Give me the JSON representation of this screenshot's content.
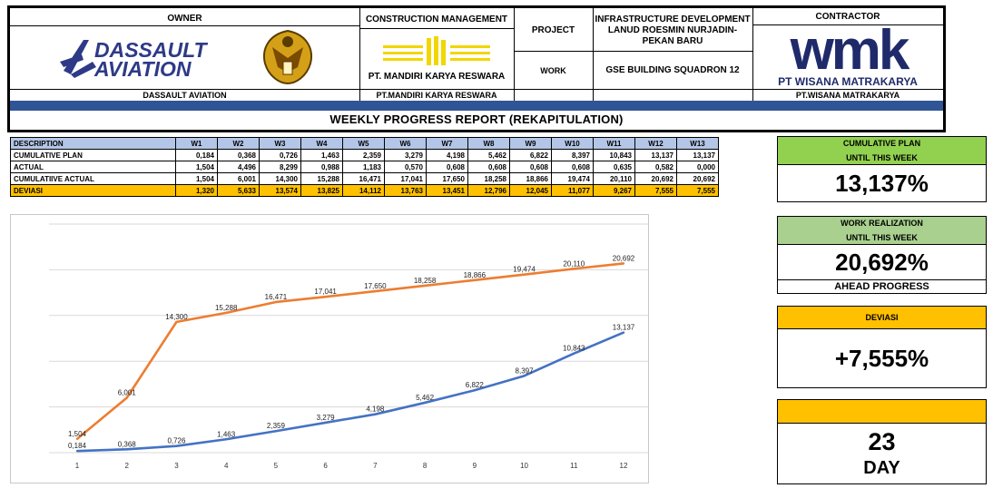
{
  "header": {
    "owner_label": "OWNER",
    "owner_logo_text_1": "DASSAULT",
    "owner_logo_text_2": "AVIATION",
    "owner_name": "DASSAULT AVIATION",
    "cm_label": "CONSTRUCTION MANAGEMENT",
    "cm_logo_text": "PT. MANDIRI KARYA RESWARA",
    "cm_name": "PT.MANDIRI KARYA RESWARA",
    "project_label": "PROJECT",
    "project_value": "INFRASTRUCTURE DEVELOPMENT LANUD ROESMIN NURJADIN-PEKAN BARU",
    "work_label": "WORK",
    "work_value": "GSE BUILDING SQUADRON 12",
    "contractor_label": "CONTRACTOR",
    "contractor_logo_text": "wmk",
    "contractor_logo_sub": "PT WISANA MATRAKARYA",
    "contractor_name": "PT.WISANA MATRAKARYA",
    "report_title": "WEEKLY PROGRESS REPORT (REKAPITULATION)"
  },
  "table": {
    "columns": [
      "W1",
      "W2",
      "W3",
      "W4",
      "W5",
      "W6",
      "W7",
      "W8",
      "W9",
      "W10",
      "W11",
      "W12",
      "W13"
    ],
    "description_label": "DESCRIPTION",
    "rows": [
      {
        "label": "CUMULATIVE PLAN",
        "values": [
          "0,184",
          "0,368",
          "0,726",
          "1,463",
          "2,359",
          "3,279",
          "4,198",
          "5,462",
          "6,822",
          "8,397",
          "10,843",
          "13,137",
          "13,137"
        ]
      },
      {
        "label": "ACTUAL",
        "values": [
          "1,504",
          "4,496",
          "8,299",
          "0,988",
          "1,183",
          "0,570",
          "0,608",
          "0,608",
          "0,608",
          "0,608",
          "0,635",
          "0,582",
          "0,000"
        ]
      },
      {
        "label": "CUMULATIIVE ACTUAL",
        "values": [
          "1,504",
          "6,001",
          "14,300",
          "15,288",
          "16,471",
          "17,041",
          "17,650",
          "18,258",
          "18,866",
          "19,474",
          "20,110",
          "20,692",
          "20,692"
        ]
      },
      {
        "label": "DEVIASI",
        "values": [
          "1,320",
          "5,633",
          "13,574",
          "13,825",
          "14,112",
          "13,763",
          "13,451",
          "12,796",
          "12,045",
          "11,077",
          "9,267",
          "7,555",
          "7,555"
        ]
      }
    ]
  },
  "cards": {
    "plan_title_1": "CUMULATIVE PLAN",
    "plan_title_2": "UNTIL THIS WEEK",
    "plan_value": "13,137%",
    "real_title_1": "WORK REALIZATION",
    "real_title_2": "UNTIL THIS WEEK",
    "real_value": "20,692%",
    "real_sub": "AHEAD PROGRESS",
    "dev_title": "DEVIASI",
    "dev_value": "+7,555%",
    "day_value": "23",
    "day_label": "DAY",
    "colors": {
      "green": "#92d050",
      "light_green": "#a9d08e",
      "amber": "#ffc000"
    }
  },
  "chart_data": {
    "type": "line",
    "x": [
      1,
      2,
      3,
      4,
      5,
      6,
      7,
      8,
      9,
      10,
      11,
      12
    ],
    "ylim": [
      0,
      25
    ],
    "grid": true,
    "series": [
      {
        "color": "#ed7d31",
        "values": [
          1.504,
          6.001,
          14.3,
          15.288,
          16.471,
          17.041,
          17.65,
          18.258,
          18.866,
          19.474,
          20.11,
          20.692
        ],
        "labels": [
          "1,504",
          "6,001",
          "14,300",
          "15,288",
          "16,471",
          "17,041",
          "17,650",
          "18,258",
          "18,866",
          "19,474",
          "20,110",
          "20,692"
        ]
      },
      {
        "color": "#4472c4",
        "values": [
          0.184,
          0.368,
          0.726,
          1.463,
          2.359,
          3.279,
          4.198,
          5.462,
          6.822,
          8.397,
          10.843,
          13.137
        ],
        "labels": [
          "0,184",
          "0,368",
          "0,726",
          "1,463",
          "2,359",
          "3,279",
          "4,198",
          "5,462",
          "6,822",
          "8,397",
          "10,843",
          "13,137"
        ]
      }
    ]
  }
}
